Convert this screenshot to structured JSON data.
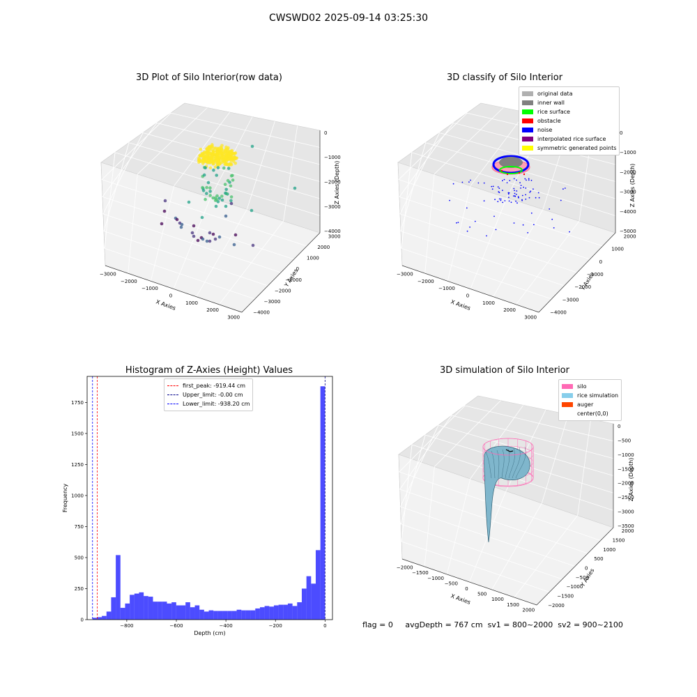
{
  "suptitle": "CWSWD02 2025-09-14 03:25:30",
  "footer": {
    "flag": "flag = 0",
    "avg": "avgDepth = 767 cm",
    "sv1": "sv1 = 800~2000",
    "sv2": "sv2 = 900~2100"
  },
  "chart_data": [
    {
      "type": "scatter",
      "title": "3D Plot of Silo Interior(row data)",
      "xlabel": "X Axies",
      "ylabel": "Y Axies",
      "zlabel": "Z Axies (Depth)",
      "x_ticks": [
        "−3000",
        "−2000",
        "−1000",
        "0",
        "1000",
        "2000",
        "3000"
      ],
      "y_ticks": [
        "−4000",
        "−3000",
        "−2000",
        "−1000",
        "0",
        "1000",
        "2000",
        "3000"
      ],
      "z_ticks": [
        "0",
        "−1000",
        "−2000",
        "−3000",
        "−4000"
      ],
      "colormap": "viridis"
    },
    {
      "type": "scatter",
      "title": "3D classify of Silo Interior",
      "xlabel": "X Axies",
      "ylabel": "Y Axies",
      "zlabel": "Z Axies (Depth)",
      "x_ticks": [
        "−3000",
        "−2000",
        "−1000",
        "0",
        "1000",
        "2000",
        "3000"
      ],
      "y_ticks": [
        "−4000",
        "−3000",
        "−2000",
        "−1000",
        "0",
        "1000",
        "2000"
      ],
      "z_ticks": [
        "0",
        "−1000",
        "−2000",
        "−3000",
        "−4000",
        "−5000"
      ],
      "legend": [
        {
          "label": "original data",
          "color": "#b0b0b0"
        },
        {
          "label": "inner wall",
          "color": "#808080"
        },
        {
          "label": "rice surface",
          "color": "#00ff00"
        },
        {
          "label": "obstacle",
          "color": "#ff0000"
        },
        {
          "label": "noise",
          "color": "#0000ff"
        },
        {
          "label": "interpolated rice surface",
          "color": "#800080"
        },
        {
          "label": "symmetric generated points",
          "color": "#ffff00"
        }
      ]
    },
    {
      "type": "bar",
      "title": "Histogram of Z-Axies (Height) Values",
      "xlabel": "Depth (cm)",
      "ylabel": "Frequency",
      "xlim": [
        -960,
        30
      ],
      "ylim": [
        0,
        1960
      ],
      "x_ticks": [
        {
          "v": -800,
          "t": "−800"
        },
        {
          "v": -600,
          "t": "−600"
        },
        {
          "v": -400,
          "t": "−400"
        },
        {
          "v": -200,
          "t": "−200"
        },
        {
          "v": 0,
          "t": "0"
        }
      ],
      "y_ticks": [
        {
          "v": 0,
          "t": "0"
        },
        {
          "v": 250,
          "t": "250"
        },
        {
          "v": 500,
          "t": "500"
        },
        {
          "v": 750,
          "t": "750"
        },
        {
          "v": 1000,
          "t": "1000"
        },
        {
          "v": 1250,
          "t": "1250"
        },
        {
          "v": 1500,
          "t": "1500"
        },
        {
          "v": 1750,
          "t": "1750"
        }
      ],
      "bin_start": -938.2,
      "bin_width": 18.764,
      "values": [
        15,
        20,
        30,
        65,
        180,
        520,
        95,
        130,
        200,
        210,
        220,
        190,
        185,
        145,
        145,
        145,
        130,
        140,
        115,
        115,
        140,
        100,
        115,
        80,
        65,
        75,
        70,
        70,
        70,
        70,
        70,
        80,
        75,
        75,
        75,
        90,
        100,
        110,
        105,
        115,
        120,
        120,
        130,
        110,
        140,
        250,
        350,
        290,
        560,
        1880
      ],
      "bar_color": "#0000ff",
      "vlines": [
        {
          "label": "first_peak: -919.44 cm",
          "value": -919.44,
          "color": "#ff0000"
        },
        {
          "label": "Upper_limit: -0.00 cm",
          "value": 0,
          "color": "#00008b"
        },
        {
          "label": "Lower_limit: -938.20 cm",
          "value": -938.2,
          "color": "#0000ff"
        }
      ]
    },
    {
      "type": "surface",
      "title": "3D simulation of Silo Interior",
      "xlabel": "X Axies",
      "ylabel": "Y Axies",
      "zlabel": "Z Axies (Depth)",
      "x_ticks": [
        "−2000",
        "−1500",
        "−1000",
        "−500",
        "0",
        "500",
        "1000",
        "1500",
        "2000"
      ],
      "y_ticks": [
        "−2000",
        "−1500",
        "−1000",
        "−500",
        "0",
        "500",
        "1000",
        "1500",
        "2000"
      ],
      "z_ticks": [
        "0",
        "−500",
        "−1000",
        "−1500",
        "−2000",
        "−2500",
        "−3000",
        "−3500"
      ],
      "legend": [
        {
          "label": "silo",
          "color": "#ff69b4"
        },
        {
          "label": "rice simulation",
          "color": "#87ceeb"
        },
        {
          "label": "auger",
          "color": "#ff4500"
        },
        {
          "label": "center(0,0)",
          "color": "#ffffff"
        }
      ]
    }
  ]
}
